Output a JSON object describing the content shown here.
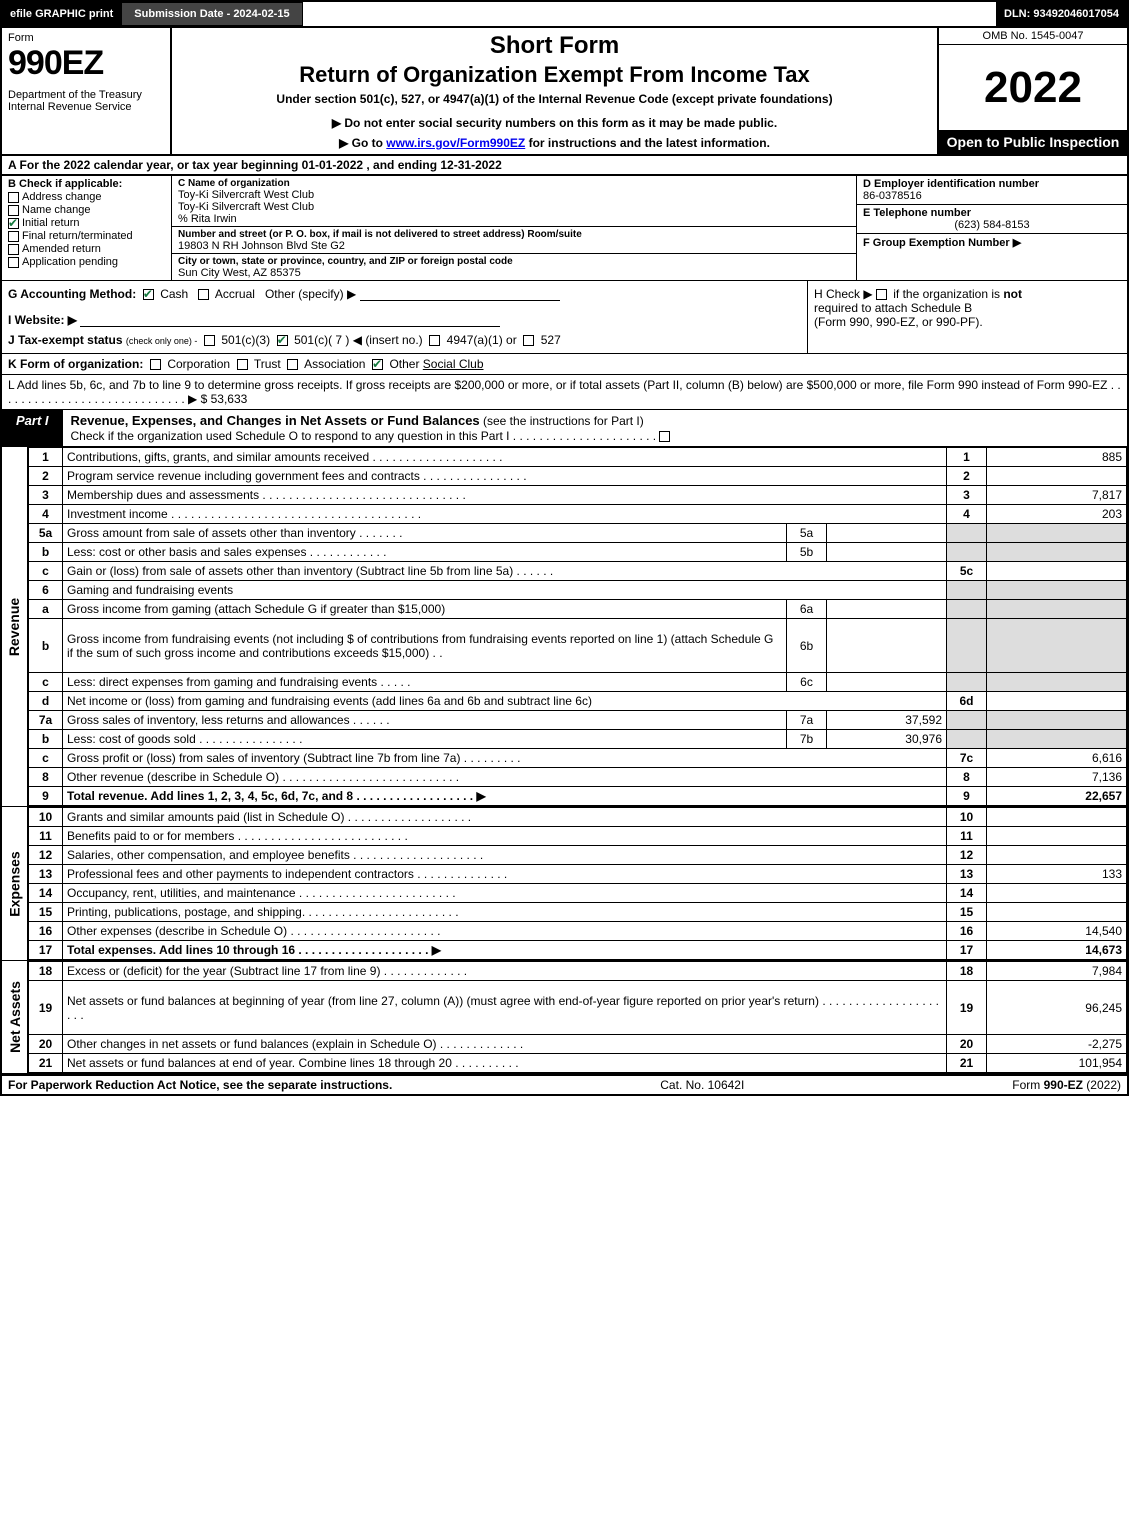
{
  "topbar": {
    "efile": "efile GRAPHIC print",
    "subdate": "Submission Date - 2024-02-15",
    "dln": "DLN: 93492046017054"
  },
  "header": {
    "form_word": "Form",
    "form_no": "990EZ",
    "dept": "Department of the Treasury\nInternal Revenue Service",
    "short": "Short Form",
    "title2": "Return of Organization Exempt From Income Tax",
    "under": "Under section 501(c), 527, or 4947(a)(1) of the Internal Revenue Code (except private foundations)",
    "note1": "▶ Do not enter social security numbers on this form as it may be made public.",
    "note2_pre": "▶ Go to ",
    "note2_link": "www.irs.gov/Form990EZ",
    "note2_post": " for instructions and the latest information.",
    "omb": "OMB No. 1545-0047",
    "year": "2022",
    "open": "Open to Public Inspection"
  },
  "rowA": "A  For the 2022 calendar year, or tax year beginning 01-01-2022 , and ending 12-31-2022",
  "B": {
    "label": "B  Check if applicable:",
    "items": [
      {
        "t": "Address change",
        "c": false
      },
      {
        "t": "Name change",
        "c": false
      },
      {
        "t": "Initial return",
        "c": true
      },
      {
        "t": "Final return/terminated",
        "c": false
      },
      {
        "t": "Amended return",
        "c": false
      },
      {
        "t": "Application pending",
        "c": false
      }
    ]
  },
  "C": {
    "name_lbl": "C Name of organization",
    "name1": "Toy-Ki Silvercraft West Club",
    "name2": "Toy-Ki Silvercraft West Club",
    "care": "% Rita Irwin",
    "street_lbl": "Number and street (or P. O. box, if mail is not delivered to street address)      Room/suite",
    "street": "19803 N RH Johnson Blvd Ste G2",
    "city_lbl": "City or town, state or province, country, and ZIP or foreign postal code",
    "city": "Sun City West, AZ  85375"
  },
  "D": {
    "ein_lbl": "D Employer identification number",
    "ein": "86-0378516",
    "tel_lbl": "E Telephone number",
    "tel": "(623) 584-8153",
    "grp_lbl": "F Group Exemption Number  ▶"
  },
  "G": {
    "label": "G Accounting Method:",
    "cash": "Cash",
    "accrual": "Accrual",
    "other": "Other (specify) ▶"
  },
  "H": {
    "text1": "H  Check ▶",
    "text2": "if the organization is ",
    "not": "not",
    "text3": "required to attach Schedule B",
    "text4": "(Form 990, 990-EZ, or 990-PF)."
  },
  "I": {
    "label": "I Website: ▶"
  },
  "J": {
    "label": "J Tax-exempt status",
    "sub": "(check only one) -",
    "opts": "501(c)(3)    501(c)( 7 ) ◀ (insert no.)    4947(a)(1) or    527"
  },
  "K": {
    "label": "K Form of organization:",
    "opts": "Corporation    Trust    Association    Other",
    "other_val": "Social Club"
  },
  "L": {
    "text": "L Add lines 5b, 6c, and 7b to line 9 to determine gross receipts. If gross receipts are $200,000 or more, or if total assets (Part II, column (B) below) are $500,000 or more, file Form 990 instead of Form 990-EZ  .  .  .  .  .  .  .  .  .  .  .  .  .  .  .  .  .  .  .  .  .  .  .  .  .  .  .  .  .  ▶ $",
    "val": "53,633"
  },
  "part1": {
    "tab": "Part I",
    "title": "Revenue, Expenses, and Changes in Net Assets or Fund Balances",
    "sub": " (see the instructions for Part I)",
    "check_line": "Check if the organization used Schedule O to respond to any question in this Part I  .  .  .  .  .  .  .  .  .  .  .  .  .  .  .  .  .  .  .  .  .  .  ",
    "check_box": "☐"
  },
  "revenue_label": "Revenue",
  "expenses_label": "Expenses",
  "netassets_label": "Net Assets",
  "revenue": [
    {
      "n": "1",
      "d": "Contributions, gifts, grants, and similar amounts received  .  .  .  .  .  .  .  .  .  .  .  .  .  .  .  .  .  .  .  .",
      "rn": "1",
      "rv": "885"
    },
    {
      "n": "2",
      "d": "Program service revenue including government fees and contracts  .  .  .  .  .  .  .  .  .  .  .  .  .  .  .  .",
      "rn": "2",
      "rv": ""
    },
    {
      "n": "3",
      "d": "Membership dues and assessments  .  .  .  .  .  .  .  .  .  .  .  .  .  .  .  .  .  .  .  .  .  .  .  .  .  .  .  .  .  .  .",
      "rn": "3",
      "rv": "7,817"
    },
    {
      "n": "4",
      "d": "Investment income  .  .  .  .  .  .  .  .  .  .  .  .  .  .  .  .  .  .  .  .  .  .  .  .  .  .  .  .  .  .  .  .  .  .  .  .  .  .",
      "rn": "4",
      "rv": "203"
    },
    {
      "n": "5a",
      "d": "Gross amount from sale of assets other than inventory  .  .  .  .  .  .  .",
      "mn": "5a",
      "mv": "",
      "grey": true
    },
    {
      "n": "b",
      "d": "Less: cost or other basis and sales expenses  .  .  .  .  .  .  .  .  .  .  .  .",
      "mn": "5b",
      "mv": "",
      "grey": true
    },
    {
      "n": "c",
      "d": "Gain or (loss) from sale of assets other than inventory (Subtract line 5b from line 5a)  .  .  .  .  .  .",
      "rn": "5c",
      "rv": ""
    },
    {
      "n": "6",
      "d": "Gaming and fundraising events",
      "grey": true,
      "nocells": true
    },
    {
      "n": "a",
      "d": "Gross income from gaming (attach Schedule G if greater than $15,000)",
      "mn": "6a",
      "mv": "",
      "grey": true
    },
    {
      "n": "b",
      "d": "Gross income from fundraising events (not including $                      of contributions from fundraising events reported on line 1) (attach Schedule G if the sum of such gross income and contributions exceeds $15,000)   .  .",
      "mn": "6b",
      "mv": "",
      "grey": true,
      "tall": true
    },
    {
      "n": "c",
      "d": "Less: direct expenses from gaming and fundraising events  .  .  .  .  .",
      "mn": "6c",
      "mv": "",
      "grey": true
    },
    {
      "n": "d",
      "d": "Net income or (loss) from gaming and fundraising events (add lines 6a and 6b and subtract line 6c)",
      "rn": "6d",
      "rv": ""
    },
    {
      "n": "7a",
      "d": "Gross sales of inventory, less returns and allowances  .  .  .  .  .  .",
      "mn": "7a",
      "mv": "37,592",
      "grey": true
    },
    {
      "n": "b",
      "d": "Less: cost of goods sold       .  .  .  .  .  .  .  .  .  .  .  .  .  .  .  .",
      "mn": "7b",
      "mv": "30,976",
      "grey": true
    },
    {
      "n": "c",
      "d": "Gross profit or (loss) from sales of inventory (Subtract line 7b from line 7a)  .  .  .  .  .  .  .  .  .",
      "rn": "7c",
      "rv": "6,616"
    },
    {
      "n": "8",
      "d": "Other revenue (describe in Schedule O)  .  .  .  .  .  .  .  .  .  .  .  .  .  .  .  .  .  .  .  .  .  .  .  .  .  .  .",
      "rn": "8",
      "rv": "7,136"
    },
    {
      "n": "9",
      "d": "Total revenue. Add lines 1, 2, 3, 4, 5c, 6d, 7c, and 8  .  .  .  .  .  .  .  .  .  .  .  .  .  .  .  .  .  .  ▶",
      "rn": "9",
      "rv": "22,657",
      "bold": true
    }
  ],
  "expenses": [
    {
      "n": "10",
      "d": "Grants and similar amounts paid (list in Schedule O)  .  .  .  .  .  .  .  .  .  .  .  .  .  .  .  .  .  .  .",
      "rn": "10",
      "rv": ""
    },
    {
      "n": "11",
      "d": "Benefits paid to or for members      .  .  .  .  .  .  .  .  .  .  .  .  .  .  .  .  .  .  .  .  .  .  .  .  .  .",
      "rn": "11",
      "rv": ""
    },
    {
      "n": "12",
      "d": "Salaries, other compensation, and employee benefits .  .  .  .  .  .  .  .  .  .  .  .  .  .  .  .  .  .  .  .",
      "rn": "12",
      "rv": ""
    },
    {
      "n": "13",
      "d": "Professional fees and other payments to independent contractors  .  .  .  .  .  .  .  .  .  .  .  .  .  .",
      "rn": "13",
      "rv": "133"
    },
    {
      "n": "14",
      "d": "Occupancy, rent, utilities, and maintenance .  .  .  .  .  .  .  .  .  .  .  .  .  .  .  .  .  .  .  .  .  .  .  .",
      "rn": "14",
      "rv": ""
    },
    {
      "n": "15",
      "d": "Printing, publications, postage, and shipping.  .  .  .  .  .  .  .  .  .  .  .  .  .  .  .  .  .  .  .  .  .  .  .",
      "rn": "15",
      "rv": ""
    },
    {
      "n": "16",
      "d": "Other expenses (describe in Schedule O)     .  .  .  .  .  .  .  .  .  .  .  .  .  .  .  .  .  .  .  .  .  .  .",
      "rn": "16",
      "rv": "14,540"
    },
    {
      "n": "17",
      "d": "Total expenses. Add lines 10 through 16     .  .  .  .  .  .  .  .  .  .  .  .  .  .  .  .  .  .  .  .  ▶",
      "rn": "17",
      "rv": "14,673",
      "bold": true
    }
  ],
  "netassets": [
    {
      "n": "18",
      "d": "Excess or (deficit) for the year (Subtract line 17 from line 9)       .  .  .  .  .  .  .  .  .  .  .  .  .",
      "rn": "18",
      "rv": "7,984"
    },
    {
      "n": "19",
      "d": "Net assets or fund balances at beginning of year (from line 27, column (A)) (must agree with end-of-year figure reported on prior year's return) .  .  .  .  .  .  .  .  .  .  .  .  .  .  .  .  .  .  .  .  .",
      "rn": "19",
      "rv": "96,245",
      "tall": true
    },
    {
      "n": "20",
      "d": "Other changes in net assets or fund balances (explain in Schedule O) .  .  .  .  .  .  .  .  .  .  .  .  .",
      "rn": "20",
      "rv": "-2,275"
    },
    {
      "n": "21",
      "d": "Net assets or fund balances at end of year. Combine lines 18 through 20 .  .  .  .  .  .  .  .  .  .",
      "rn": "21",
      "rv": "101,954"
    }
  ],
  "footer": {
    "left": "For Paperwork Reduction Act Notice, see the separate instructions.",
    "center": "Cat. No. 10642I",
    "right_pre": "Form ",
    "right_bold": "990-EZ",
    "right_post": " (2022)"
  }
}
